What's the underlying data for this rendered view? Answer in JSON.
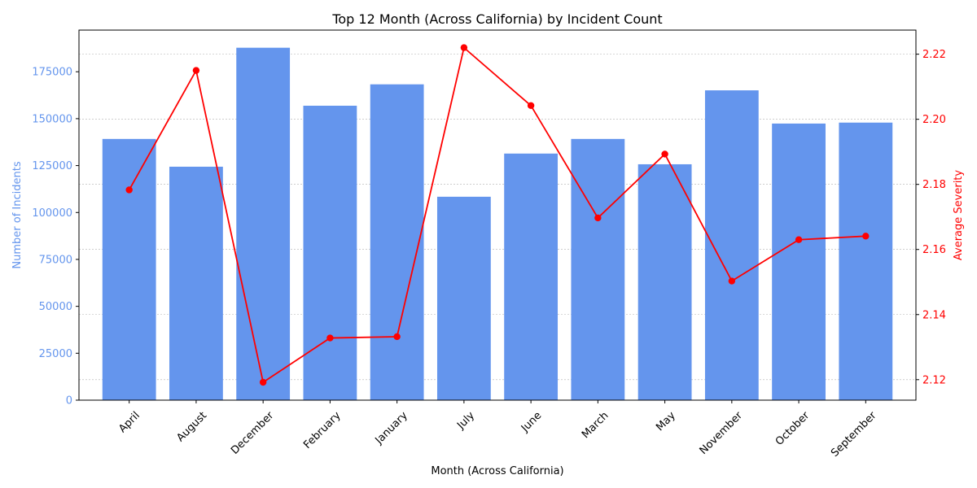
{
  "chart_data": {
    "type": "bar",
    "title": "Top 12 Month (Across California) by Incident Count",
    "xlabel": "Month (Across California)",
    "ylabel": "Number of Incidents",
    "y2label": "Average Severity",
    "categories": [
      "April",
      "August",
      "December",
      "February",
      "January",
      "July",
      "June",
      "March",
      "May",
      "November",
      "October",
      "September"
    ],
    "series": [
      {
        "name": "",
        "type": "bar",
        "axis": "left",
        "values": [
          139200,
          124400,
          187800,
          156900,
          168300,
          108400,
          131400,
          139200,
          125700,
          165100,
          147400,
          147900
        ]
      },
      {
        "name": "",
        "type": "line",
        "axis": "right",
        "values": [
          2.1783,
          2.215,
          2.1192,
          2.1328,
          2.1332,
          2.222,
          2.2042,
          2.1697,
          2.1893,
          2.1503,
          2.163,
          2.1641
        ]
      }
    ],
    "ylim": [
      0,
      197200
    ],
    "y2lim": [
      2.1137,
      2.2274
    ],
    "yticks": [
      0,
      25000,
      50000,
      75000,
      100000,
      125000,
      150000,
      175000
    ],
    "y2ticks": [
      2.12,
      2.14,
      2.16,
      2.18,
      2.2,
      2.22
    ],
    "y2tick_labels": [
      "2.12",
      "2.14",
      "2.16",
      "2.18",
      "2.20",
      "2.22"
    ],
    "grid": "horizontal dashed",
    "colors": {
      "bar": "#6495ED",
      "line": "#FF0000",
      "left_axis_text": "#6495ED",
      "right_axis_text": "#FF0000"
    }
  }
}
